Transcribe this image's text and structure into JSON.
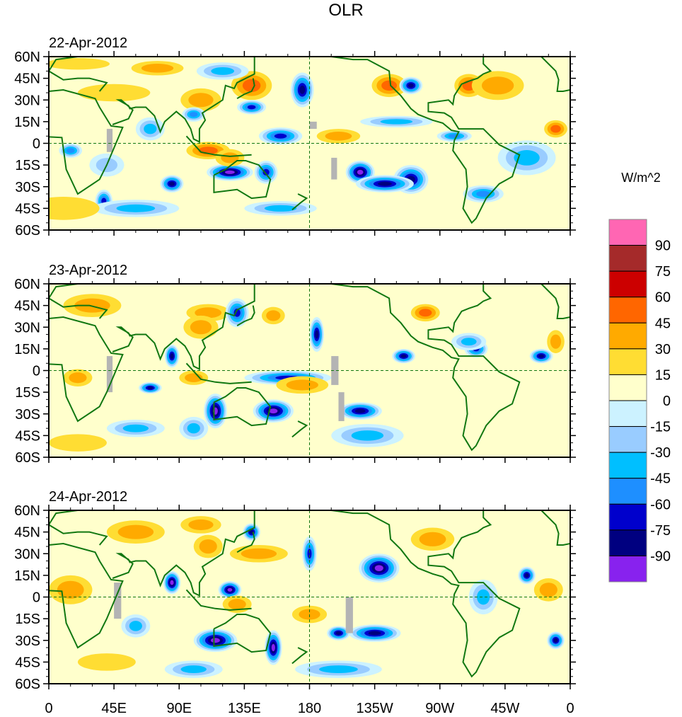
{
  "chart_data": {
    "type": "heatmap",
    "title": "OLR",
    "units_label": "W/m^2",
    "projection": "cylindrical-equidistant",
    "xlim": [
      0,
      360
    ],
    "ylim": [
      -60,
      60
    ],
    "x_ticks": [
      {
        "value": 0,
        "label": "0"
      },
      {
        "value": 45,
        "label": "45E"
      },
      {
        "value": 90,
        "label": "90E"
      },
      {
        "value": 135,
        "label": "135E"
      },
      {
        "value": 180,
        "label": "180"
      },
      {
        "value": 225,
        "label": "135W"
      },
      {
        "value": 270,
        "label": "90W"
      },
      {
        "value": 315,
        "label": "45W"
      },
      {
        "value": 360,
        "label": "0"
      }
    ],
    "y_ticks": [
      {
        "value": 60,
        "label": "60N"
      },
      {
        "value": 45,
        "label": "45N"
      },
      {
        "value": 30,
        "label": "30N"
      },
      {
        "value": 15,
        "label": "15N"
      },
      {
        "value": 0,
        "label": "0"
      },
      {
        "value": -15,
        "label": "15S"
      },
      {
        "value": -30,
        "label": "30S"
      },
      {
        "value": -45,
        "label": "45S"
      },
      {
        "value": -60,
        "label": "60S"
      }
    ],
    "colorbar": {
      "placement": "right",
      "levels": [
        "90",
        "75",
        "60",
        "45",
        "30",
        "15",
        "0",
        "-15",
        "-30",
        "-45",
        "-60",
        "-75",
        "-90"
      ],
      "colors": [
        "#ff66b3",
        "#a52a2a",
        "#cc0000",
        "#ff6600",
        "#ffaa00",
        "#ffdd33",
        "#ffffcc",
        "#ccf2ff",
        "#99ccff",
        "#00bfff",
        "#1e8fff",
        "#0000cc",
        "#000080",
        "#8822ee"
      ]
    },
    "colors": {
      "coastline": "#117711",
      "missing": "#b4b4b4",
      "background": "#ffffcc",
      "equator": "#117711",
      "frame": "#000000"
    },
    "panels": [
      {
        "date": "22-Apr-2012",
        "blobs": [
          [
            20,
            55,
            22,
            4,
            5
          ],
          [
            75,
            52,
            18,
            5,
            4
          ],
          [
            105,
            30,
            14,
            8,
            4
          ],
          [
            140,
            40,
            14,
            10,
            3
          ],
          [
            45,
            35,
            25,
            6,
            5
          ],
          [
            15,
            -5,
            8,
            5,
            10
          ],
          [
            38,
            -40,
            6,
            8,
            11
          ],
          [
            85,
            -28,
            8,
            6,
            12
          ],
          [
            125,
            -20,
            16,
            6,
            13
          ],
          [
            150,
            -20,
            8,
            8,
            11
          ],
          [
            175,
            37,
            8,
            12,
            12
          ],
          [
            140,
            25,
            10,
            5,
            11
          ],
          [
            160,
            5,
            15,
            6,
            11
          ],
          [
            250,
            -25,
            12,
            10,
            12
          ],
          [
            215,
            -20,
            10,
            8,
            13
          ],
          [
            232,
            -28,
            20,
            6,
            12
          ],
          [
            300,
            -35,
            14,
            6,
            10
          ],
          [
            290,
            40,
            10,
            8,
            3
          ],
          [
            235,
            40,
            12,
            8,
            3
          ],
          [
            250,
            40,
            8,
            6,
            12
          ],
          [
            310,
            40,
            18,
            10,
            4
          ],
          [
            350,
            10,
            8,
            6,
            3
          ],
          [
            200,
            5,
            15,
            5,
            4
          ],
          [
            110,
            -5,
            15,
            6,
            3
          ],
          [
            125,
            -10,
            10,
            6,
            4
          ],
          [
            70,
            10,
            10,
            8,
            9
          ],
          [
            120,
            50,
            18,
            6,
            9
          ],
          [
            330,
            -10,
            20,
            12,
            9
          ],
          [
            60,
            -45,
            30,
            6,
            9
          ],
          [
            160,
            -45,
            25,
            5,
            9
          ],
          [
            240,
            15,
            25,
            4,
            9
          ],
          [
            280,
            5,
            12,
            4,
            10
          ],
          [
            40,
            -15,
            12,
            8,
            8
          ],
          [
            10,
            -45,
            25,
            8,
            5
          ],
          [
            100,
            20,
            8,
            5,
            10
          ]
        ],
        "missing": [
          [
            40,
            10,
            4,
            16
          ],
          [
            180,
            15,
            5,
            5
          ],
          [
            195,
            -10,
            4,
            15
          ]
        ]
      },
      {
        "date": "23-Apr-2012",
        "blobs": [
          [
            30,
            45,
            20,
            8,
            4
          ],
          [
            110,
            40,
            15,
            6,
            4
          ],
          [
            155,
            38,
            8,
            6,
            4
          ],
          [
            105,
            30,
            12,
            8,
            4
          ],
          [
            20,
            -5,
            10,
            6,
            4
          ],
          [
            85,
            10,
            5,
            8,
            12
          ],
          [
            70,
            -12,
            8,
            4,
            12
          ],
          [
            115,
            -28,
            8,
            12,
            13
          ],
          [
            155,
            -28,
            14,
            8,
            13
          ],
          [
            185,
            25,
            5,
            12,
            12
          ],
          [
            165,
            -5,
            30,
            5,
            11
          ],
          [
            215,
            -28,
            15,
            6,
            12
          ],
          [
            245,
            10,
            8,
            5,
            12
          ],
          [
            295,
            15,
            8,
            6,
            11
          ],
          [
            340,
            10,
            8,
            5,
            12
          ],
          [
            260,
            40,
            10,
            6,
            3
          ],
          [
            290,
            20,
            12,
            6,
            9
          ],
          [
            220,
            -45,
            25,
            8,
            9
          ],
          [
            20,
            -50,
            20,
            6,
            5
          ],
          [
            60,
            -40,
            20,
            6,
            9
          ],
          [
            175,
            -10,
            18,
            6,
            4
          ],
          [
            100,
            -5,
            10,
            5,
            4
          ],
          [
            130,
            40,
            8,
            10,
            11
          ],
          [
            100,
            -40,
            10,
            8,
            9
          ],
          [
            350,
            20,
            6,
            8,
            4
          ]
        ],
        "missing": [
          [
            40,
            10,
            4,
            25
          ],
          [
            195,
            10,
            5,
            20
          ],
          [
            200,
            -15,
            4,
            20
          ]
        ]
      },
      {
        "date": "24-Apr-2012",
        "blobs": [
          [
            60,
            45,
            20,
            8,
            4
          ],
          [
            105,
            50,
            14,
            6,
            4
          ],
          [
            145,
            30,
            20,
            6,
            4
          ],
          [
            15,
            5,
            15,
            10,
            4
          ],
          [
            110,
            35,
            10,
            8,
            4
          ],
          [
            85,
            10,
            6,
            8,
            13
          ],
          [
            125,
            5,
            8,
            6,
            13
          ],
          [
            140,
            45,
            6,
            6,
            12
          ],
          [
            180,
            30,
            5,
            12,
            11
          ],
          [
            115,
            -30,
            15,
            8,
            13
          ],
          [
            155,
            -35,
            6,
            12,
            13
          ],
          [
            228,
            20,
            14,
            10,
            13
          ],
          [
            225,
            -25,
            18,
            6,
            12
          ],
          [
            200,
            -25,
            8,
            5,
            12
          ],
          [
            330,
            15,
            6,
            6,
            12
          ],
          [
            265,
            40,
            15,
            8,
            4
          ],
          [
            345,
            5,
            10,
            8,
            4
          ],
          [
            350,
            -30,
            6,
            6,
            12
          ],
          [
            300,
            0,
            10,
            12,
            9
          ],
          [
            130,
            -5,
            10,
            6,
            4
          ],
          [
            180,
            -12,
            12,
            6,
            4
          ],
          [
            40,
            -45,
            20,
            6,
            5
          ],
          [
            200,
            -50,
            30,
            6,
            9
          ],
          [
            100,
            -50,
            20,
            6,
            9
          ],
          [
            60,
            -20,
            10,
            8,
            9
          ]
        ],
        "missing": [
          [
            45,
            10,
            5,
            25
          ],
          [
            205,
            0,
            5,
            25
          ]
        ]
      }
    ]
  }
}
